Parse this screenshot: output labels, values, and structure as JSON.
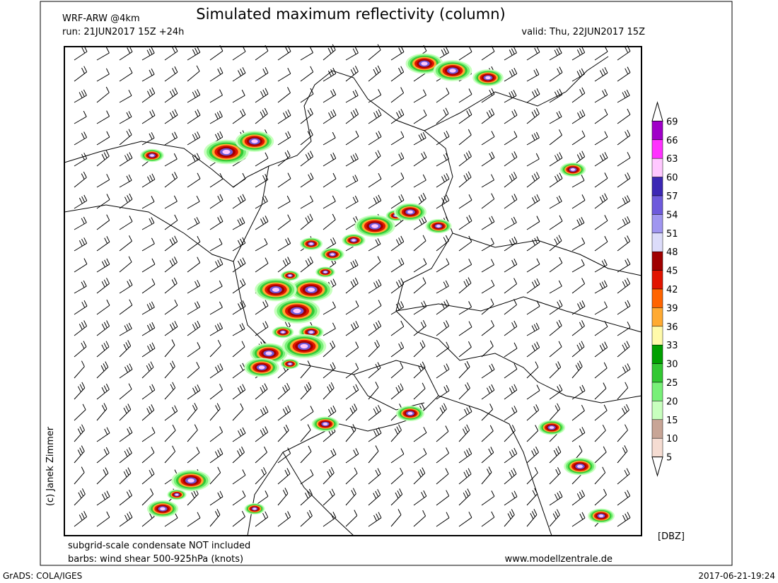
{
  "header": {
    "model": "WRF-ARW @4km",
    "title": "Simulated maximum reflectivity (column)",
    "run": "run: 21JUN2017 15Z +24h",
    "valid": "valid: Thu, 22JUN2017 15Z"
  },
  "credit": "(c) Janek Zimmer",
  "colorbar": {
    "unit": "[DBZ]",
    "levels": [
      69,
      66,
      63,
      60,
      57,
      54,
      51,
      48,
      45,
      42,
      39,
      36,
      33,
      30,
      25,
      20,
      15,
      10,
      5
    ],
    "colors": [
      "#ffffff",
      "#a000c8",
      "#ff32ff",
      "#ffc8ff",
      "#3c28b4",
      "#6e5adc",
      "#a096f0",
      "#dcdcfa",
      "#a00000",
      "#e11400",
      "#ff6400",
      "#ffaa32",
      "#fffaaa",
      "#00a000",
      "#32c832",
      "#78f078",
      "#c8ffbe",
      "#c8a596",
      "#f5dcd2",
      "#ffffff"
    ]
  },
  "footer": {
    "note1": "subgrid-scale condensate NOT included",
    "note2": "barbs: wind shear 500-925hPa (knots)",
    "site": "www.modellzentrale.de",
    "software": "GrADS: COLA/IGES",
    "timestamp": "2017-06-21-19:24"
  }
}
